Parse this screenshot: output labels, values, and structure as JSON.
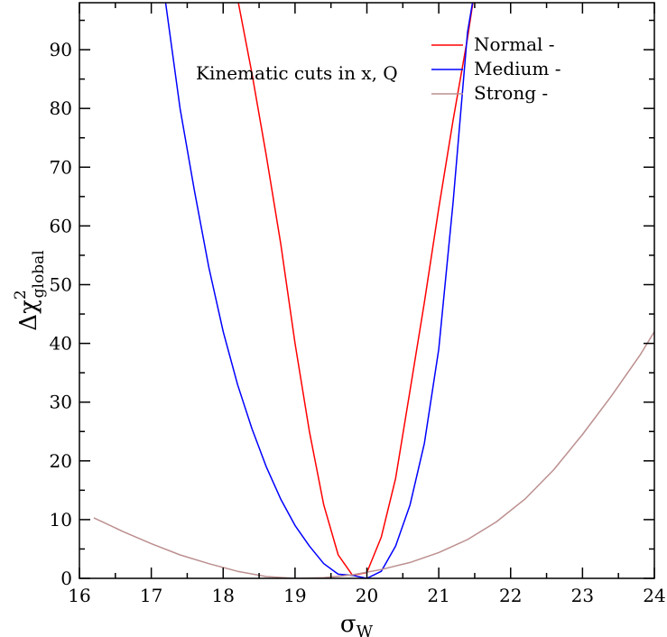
{
  "chart_data": {
    "type": "line",
    "title": "",
    "annotation": "Kinematic cuts in x, Q",
    "xlabel": {
      "symbol": "σ",
      "subscript": "W"
    },
    "ylabel": {
      "prefix": "Δχ",
      "superscript": "2",
      "subscript": "global"
    },
    "xlim": [
      16,
      24
    ],
    "ylim": [
      0,
      98
    ],
    "xticks": [
      16,
      17,
      18,
      19,
      20,
      21,
      22,
      23,
      24
    ],
    "yticks": [
      0,
      10,
      20,
      30,
      40,
      50,
      60,
      70,
      80,
      90
    ],
    "grid": false,
    "legend_position": "top-right",
    "series": [
      {
        "name": "Normal -",
        "color": "#ff0000",
        "x": [
          18.18,
          18.4,
          18.6,
          18.8,
          19.0,
          19.2,
          19.4,
          19.6,
          19.8,
          20.0,
          20.2,
          20.4,
          20.6,
          20.8,
          21.0,
          21.2,
          21.4,
          21.5
        ],
        "y": [
          100,
          86,
          72,
          57,
          40,
          25,
          12.5,
          4,
          0.5,
          1,
          7,
          17,
          32,
          47,
          63,
          78,
          92,
          100
        ]
      },
      {
        "name": "Medium -",
        "color": "#0000ff",
        "x": [
          17.2,
          17.4,
          17.6,
          17.8,
          18.0,
          18.2,
          18.4,
          18.6,
          18.8,
          19.0,
          19.2,
          19.4,
          19.6,
          19.8,
          20.0,
          20.2,
          20.4,
          20.6,
          20.8,
          21.0,
          21.2,
          21.4,
          21.47
        ],
        "y": [
          98,
          80,
          66,
          53,
          42,
          33,
          25.5,
          19,
          13.5,
          9,
          5.5,
          2.5,
          0.7,
          0.5,
          0,
          1.2,
          5.5,
          12.5,
          23,
          39,
          64,
          93,
          98
        ]
      },
      {
        "name": "Strong -",
        "color": "#bc8f8f",
        "x": [
          16.2,
          16.6,
          17.0,
          17.4,
          17.8,
          18.2,
          18.6,
          19.0,
          19.4,
          19.8,
          20.2,
          20.6,
          21.0,
          21.4,
          21.8,
          22.2,
          22.6,
          23.0,
          23.4,
          23.8,
          24.0
        ],
        "y": [
          10.3,
          8.0,
          5.9,
          4.0,
          2.5,
          1.2,
          0.3,
          0.0,
          0.1,
          0.6,
          1.5,
          2.7,
          4.4,
          6.6,
          9.6,
          13.5,
          18.5,
          24.5,
          31.0,
          38.0,
          42.0
        ]
      }
    ]
  }
}
